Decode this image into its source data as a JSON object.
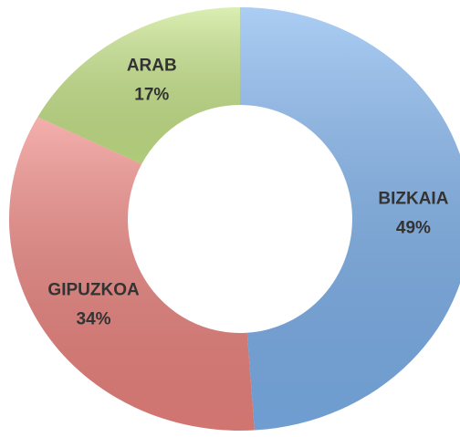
{
  "chart_data": {
    "type": "donut",
    "categories": [
      "BIZKAIA",
      "GIPUZKOA",
      "ARAB"
    ],
    "values": [
      49,
      34,
      17
    ],
    "value_labels": [
      "49%",
      "34%",
      "17%"
    ],
    "colors": [
      "#7fb3ee",
      "#ee8580",
      "#c8e68a"
    ]
  }
}
